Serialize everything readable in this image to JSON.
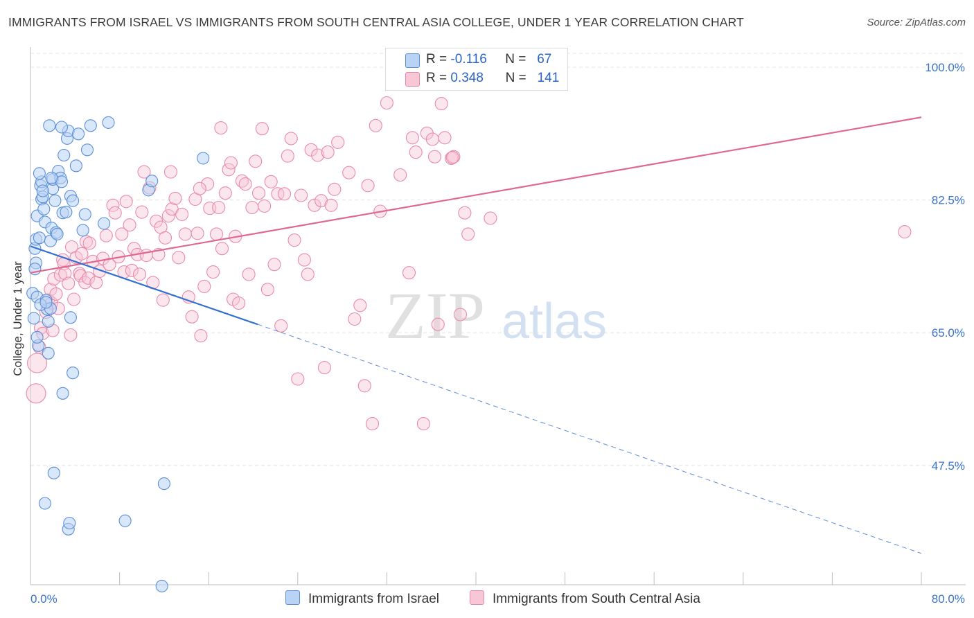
{
  "title": "IMMIGRANTS FROM ISRAEL VS IMMIGRANTS FROM SOUTH CENTRAL ASIA COLLEGE, UNDER 1 YEAR CORRELATION CHART",
  "source": "Source: ZipAtlas.com",
  "watermark": {
    "zip": "ZIP",
    "atlas": "atlas"
  },
  "legend": {
    "rows": [
      {
        "r_label": "R =",
        "r_value": "-0.116",
        "n_label": "N =",
        "n_value": "67"
      },
      {
        "r_label": "R =",
        "r_value": "0.348",
        "n_label": "N =",
        "n_value": "141"
      }
    ]
  },
  "colors": {
    "israel_fill": "#b9d3f5",
    "israel_stroke": "#5b8fd6",
    "israel_line": "#3370d0",
    "sca_fill": "#f8c7d6",
    "sca_stroke": "#e78aa9",
    "sca_line": "#e06890",
    "tick_label": "#3a72c9",
    "grid": "#e3e3e3"
  },
  "chart_data": {
    "type": "scatter",
    "title": "IMMIGRANTS FROM ISRAEL VS IMMIGRANTS FROM SOUTH CENTRAL ASIA COLLEGE, UNDER 1 YEAR CORRELATION CHART",
    "xlabel": "",
    "ylabel": "College, Under 1 year",
    "xlim": [
      0,
      80
    ],
    "ylim": [
      31,
      100
    ],
    "x_tick_labels": [
      "0.0%",
      "80.0%"
    ],
    "y_ticks": [
      47.5,
      65.0,
      82.5,
      100.0
    ],
    "y_tick_labels": [
      "47.5%",
      "65.0%",
      "82.5%",
      "100.0%"
    ],
    "legend_position": "top-center",
    "series": [
      {
        "name": "Immigrants from Israel",
        "r": -0.116,
        "n": 67,
        "trend": {
          "solid": [
            [
              0,
              76.4
            ],
            [
              20.4,
              66.1
            ]
          ],
          "dashed": [
            [
              20.4,
              66.1
            ],
            [
              80,
              35.9
            ]
          ]
        },
        "points": [
          [
            0.2,
            70.2
          ],
          [
            0.3,
            66.9
          ],
          [
            0.4,
            76.1
          ],
          [
            0.5,
            74.2
          ],
          [
            0.4,
            73.4
          ],
          [
            0.6,
            69.7
          ],
          [
            0.5,
            77.3
          ],
          [
            0.6,
            80.4
          ],
          [
            0.8,
            77.5
          ],
          [
            0.9,
            84.4
          ],
          [
            1.0,
            82.6
          ],
          [
            1.1,
            82.9
          ],
          [
            1.0,
            84.9
          ],
          [
            1.2,
            81.3
          ],
          [
            1.3,
            79.6
          ],
          [
            1.4,
            69.3
          ],
          [
            1.5,
            68.1
          ],
          [
            1.6,
            62.3
          ],
          [
            1.6,
            66.5
          ],
          [
            1.8,
            68.2
          ],
          [
            1.8,
            77.1
          ],
          [
            1.9,
            78.8
          ],
          [
            2.0,
            84.0
          ],
          [
            2.0,
            85.2
          ],
          [
            2.2,
            82.4
          ],
          [
            2.3,
            78.2
          ],
          [
            2.4,
            78.0
          ],
          [
            2.5,
            86.3
          ],
          [
            2.7,
            85.4
          ],
          [
            2.8,
            84.9
          ],
          [
            2.9,
            80.8
          ],
          [
            3.0,
            88.4
          ],
          [
            3.2,
            80.9
          ],
          [
            3.3,
            90.6
          ],
          [
            3.4,
            91.6
          ],
          [
            3.6,
            83.0
          ],
          [
            3.8,
            82.4
          ],
          [
            4.1,
            87.0
          ],
          [
            4.3,
            91.2
          ],
          [
            4.7,
            78.5
          ],
          [
            4.9,
            80.6
          ],
          [
            5.1,
            89.1
          ],
          [
            5.4,
            92.3
          ],
          [
            6.6,
            79.4
          ],
          [
            7.0,
            92.7
          ],
          [
            1.7,
            92.3
          ],
          [
            2.8,
            92.1
          ],
          [
            3.6,
            67.0
          ],
          [
            3.8,
            59.7
          ],
          [
            2.9,
            57.0
          ],
          [
            0.8,
            86.0
          ],
          [
            1.9,
            85.4
          ],
          [
            0.7,
            63.3
          ],
          [
            1.1,
            83.7
          ],
          [
            2.1,
            46.5
          ],
          [
            1.3,
            42.5
          ],
          [
            3.4,
            39.1
          ],
          [
            3.5,
            39.9
          ],
          [
            8.5,
            40.2
          ],
          [
            12.0,
            45.1
          ],
          [
            11.8,
            31.6
          ],
          [
            15.5,
            88.0
          ],
          [
            10.6,
            83.8
          ],
          [
            10.9,
            85.0
          ],
          [
            0.9,
            68.7
          ],
          [
            1.4,
            69.0
          ],
          [
            0.6,
            64.4
          ]
        ]
      },
      {
        "name": "Immigrants from South Central Asia",
        "r": 0.348,
        "n": 141,
        "trend": {
          "solid": [
            [
              0,
              72.9
            ],
            [
              80,
              93.4
            ]
          ]
        },
        "points": [
          [
            0.5,
            57.0
          ],
          [
            0.6,
            61.0
          ],
          [
            0.8,
            63.1
          ],
          [
            0.9,
            65.6
          ],
          [
            1.1,
            64.9
          ],
          [
            1.4,
            67.7
          ],
          [
            1.6,
            69.3
          ],
          [
            1.8,
            70.7
          ],
          [
            1.9,
            68.9
          ],
          [
            2.0,
            65.3
          ],
          [
            2.1,
            72.1
          ],
          [
            2.3,
            70.1
          ],
          [
            2.5,
            68.2
          ],
          [
            2.7,
            72.6
          ],
          [
            2.9,
            74.6
          ],
          [
            3.0,
            74.1
          ],
          [
            3.1,
            72.8
          ],
          [
            3.4,
            71.5
          ],
          [
            3.6,
            64.7
          ],
          [
            3.7,
            76.3
          ],
          [
            3.9,
            69.4
          ],
          [
            4.1,
            74.9
          ],
          [
            4.4,
            72.8
          ],
          [
            4.5,
            72.5
          ],
          [
            4.6,
            75.4
          ],
          [
            4.9,
            71.6
          ],
          [
            5.0,
            77.0
          ],
          [
            5.2,
            72.2
          ],
          [
            5.3,
            76.8
          ],
          [
            5.6,
            74.4
          ],
          [
            5.9,
            71.6
          ],
          [
            6.2,
            73.1
          ],
          [
            6.5,
            74.8
          ],
          [
            6.8,
            77.8
          ],
          [
            7.1,
            74.0
          ],
          [
            7.4,
            81.8
          ],
          [
            7.6,
            80.8
          ],
          [
            7.9,
            75.0
          ],
          [
            8.2,
            78.0
          ],
          [
            8.4,
            73.0
          ],
          [
            8.6,
            82.3
          ],
          [
            8.9,
            79.2
          ],
          [
            9.1,
            73.2
          ],
          [
            9.3,
            76.1
          ],
          [
            9.6,
            75.3
          ],
          [
            9.8,
            72.7
          ],
          [
            10.0,
            80.9
          ],
          [
            10.2,
            86.2
          ],
          [
            10.4,
            75.2
          ],
          [
            10.7,
            84.1
          ],
          [
            11.0,
            71.6
          ],
          [
            11.3,
            79.7
          ],
          [
            11.5,
            75.3
          ],
          [
            11.7,
            78.9
          ],
          [
            11.9,
            69.3
          ],
          [
            12.1,
            77.5
          ],
          [
            12.4,
            80.4
          ],
          [
            12.7,
            81.3
          ],
          [
            13.0,
            82.7
          ],
          [
            13.3,
            74.9
          ],
          [
            13.6,
            80.6
          ],
          [
            13.9,
            78.0
          ],
          [
            14.2,
            69.7
          ],
          [
            14.5,
            67.1
          ],
          [
            14.8,
            82.6
          ],
          [
            15.0,
            78.1
          ],
          [
            15.3,
            64.6
          ],
          [
            15.6,
            71.1
          ],
          [
            15.9,
            84.6
          ],
          [
            16.1,
            81.4
          ],
          [
            16.4,
            73.0
          ],
          [
            16.7,
            78.0
          ],
          [
            16.9,
            81.5
          ],
          [
            17.2,
            76.1
          ],
          [
            17.5,
            83.4
          ],
          [
            17.8,
            86.5
          ],
          [
            18.0,
            87.4
          ],
          [
            18.2,
            69.4
          ],
          [
            18.4,
            77.7
          ],
          [
            18.7,
            68.9
          ],
          [
            19.0,
            85.0
          ],
          [
            19.3,
            84.6
          ],
          [
            19.6,
            72.7
          ],
          [
            19.9,
            81.5
          ],
          [
            20.2,
            87.6
          ],
          [
            20.5,
            83.4
          ],
          [
            20.8,
            91.9
          ],
          [
            21.0,
            81.7
          ],
          [
            21.3,
            70.7
          ],
          [
            21.6,
            84.9
          ],
          [
            21.9,
            74.0
          ],
          [
            22.2,
            83.3
          ],
          [
            22.5,
            65.9
          ],
          [
            22.8,
            83.3
          ],
          [
            23.1,
            88.3
          ],
          [
            23.4,
            90.6
          ],
          [
            23.7,
            77.2
          ],
          [
            24.0,
            58.9
          ],
          [
            24.3,
            83.1
          ],
          [
            24.6,
            74.6
          ],
          [
            24.9,
            72.7
          ],
          [
            25.2,
            89.1
          ],
          [
            25.5,
            81.8
          ],
          [
            25.8,
            88.4
          ],
          [
            26.1,
            82.4
          ],
          [
            26.4,
            60.4
          ],
          [
            26.7,
            88.8
          ],
          [
            27.0,
            81.8
          ],
          [
            27.3,
            83.9
          ],
          [
            27.6,
            90.1
          ],
          [
            28.6,
            86.1
          ],
          [
            29.1,
            66.8
          ],
          [
            29.6,
            68.6
          ],
          [
            30.0,
            58.0
          ],
          [
            30.3,
            84.4
          ],
          [
            30.7,
            53.0
          ],
          [
            31.0,
            92.3
          ],
          [
            31.4,
            81.0
          ],
          [
            32.0,
            95.3
          ],
          [
            33.2,
            85.8
          ],
          [
            34.0,
            72.9
          ],
          [
            34.3,
            90.7
          ],
          [
            34.6,
            88.8
          ],
          [
            35.3,
            53.0
          ],
          [
            35.6,
            91.3
          ],
          [
            36.1,
            90.5
          ],
          [
            36.3,
            88.2
          ],
          [
            36.6,
            66.1
          ],
          [
            36.9,
            95.2
          ],
          [
            37.2,
            90.7
          ],
          [
            37.8,
            88.0
          ],
          [
            38.0,
            88.2
          ],
          [
            38.6,
            67.4
          ],
          [
            37.9,
            88.1
          ],
          [
            39.0,
            80.8
          ],
          [
            39.3,
            78.0
          ],
          [
            41.3,
            80.1
          ],
          [
            78.5,
            78.3
          ],
          [
            17.1,
            92.0
          ],
          [
            12.6,
            86.2
          ],
          [
            15.2,
            84.0
          ]
        ]
      }
    ]
  },
  "bottom_legend": [
    "Immigrants from Israel",
    "Immigrants from South Central Asia"
  ]
}
